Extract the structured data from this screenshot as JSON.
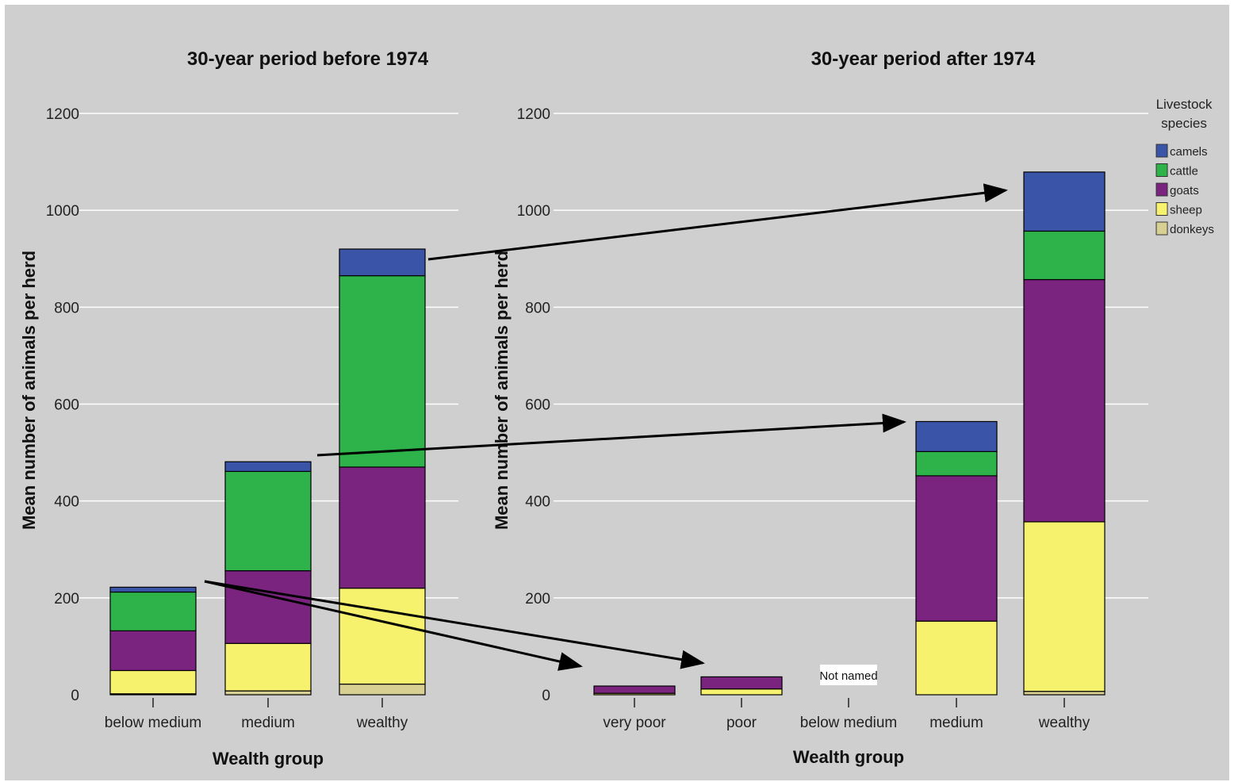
{
  "colors": {
    "background": "#cfcfcf",
    "camels": "#3a55a8",
    "cattle": "#2db34a",
    "goats": "#7a2480",
    "sheep": "#f6f26e",
    "donkeys": "#d8cf92",
    "gridline": "#ffffff",
    "arrow": "#000000"
  },
  "legend": {
    "title_line1": "Livestock",
    "title_line2": "species",
    "items": [
      {
        "key": "camels",
        "label": "camels"
      },
      {
        "key": "cattle",
        "label": "cattle"
      },
      {
        "key": "goats",
        "label": "goats"
      },
      {
        "key": "sheep",
        "label": "sheep"
      },
      {
        "key": "donkeys",
        "label": "donkeys"
      }
    ]
  },
  "annotations": {
    "not_named": "Not named"
  },
  "chart_data": [
    {
      "type": "bar",
      "stacked": true,
      "title": "30-year period before 1974",
      "xlabel": "Wealth group",
      "ylabel": "Mean number of animals per herd",
      "ylim": [
        0,
        1200
      ],
      "yticks": [
        0,
        200,
        400,
        600,
        800,
        1000,
        1200
      ],
      "categories": [
        "below medium",
        "medium",
        "wealthy"
      ],
      "series": [
        {
          "name": "donkeys",
          "values": [
            2,
            8,
            22
          ]
        },
        {
          "name": "sheep",
          "values": [
            48,
            98,
            198
          ]
        },
        {
          "name": "goats",
          "values": [
            82,
            150,
            250
          ]
        },
        {
          "name": "cattle",
          "values": [
            80,
            205,
            395
          ]
        },
        {
          "name": "camels",
          "values": [
            10,
            20,
            55
          ]
        }
      ]
    },
    {
      "type": "bar",
      "stacked": true,
      "title": "30-year period after 1974",
      "xlabel": "Wealth group",
      "ylabel": "Mean number of animals per herd",
      "ylim": [
        0,
        1200
      ],
      "yticks": [
        0,
        200,
        400,
        600,
        800,
        1000,
        1200
      ],
      "categories": [
        "very poor",
        "poor",
        "below medium",
        "medium",
        "wealthy"
      ],
      "series": [
        {
          "name": "donkeys",
          "values": [
            0,
            0,
            0,
            0,
            7
          ]
        },
        {
          "name": "sheep",
          "values": [
            3,
            12,
            0,
            152,
            350
          ]
        },
        {
          "name": "goats",
          "values": [
            15,
            25,
            0,
            300,
            500
          ]
        },
        {
          "name": "cattle",
          "values": [
            0,
            0,
            0,
            50,
            100
          ]
        },
        {
          "name": "camels",
          "values": [
            0,
            0,
            0,
            62,
            122
          ]
        }
      ]
    }
  ]
}
